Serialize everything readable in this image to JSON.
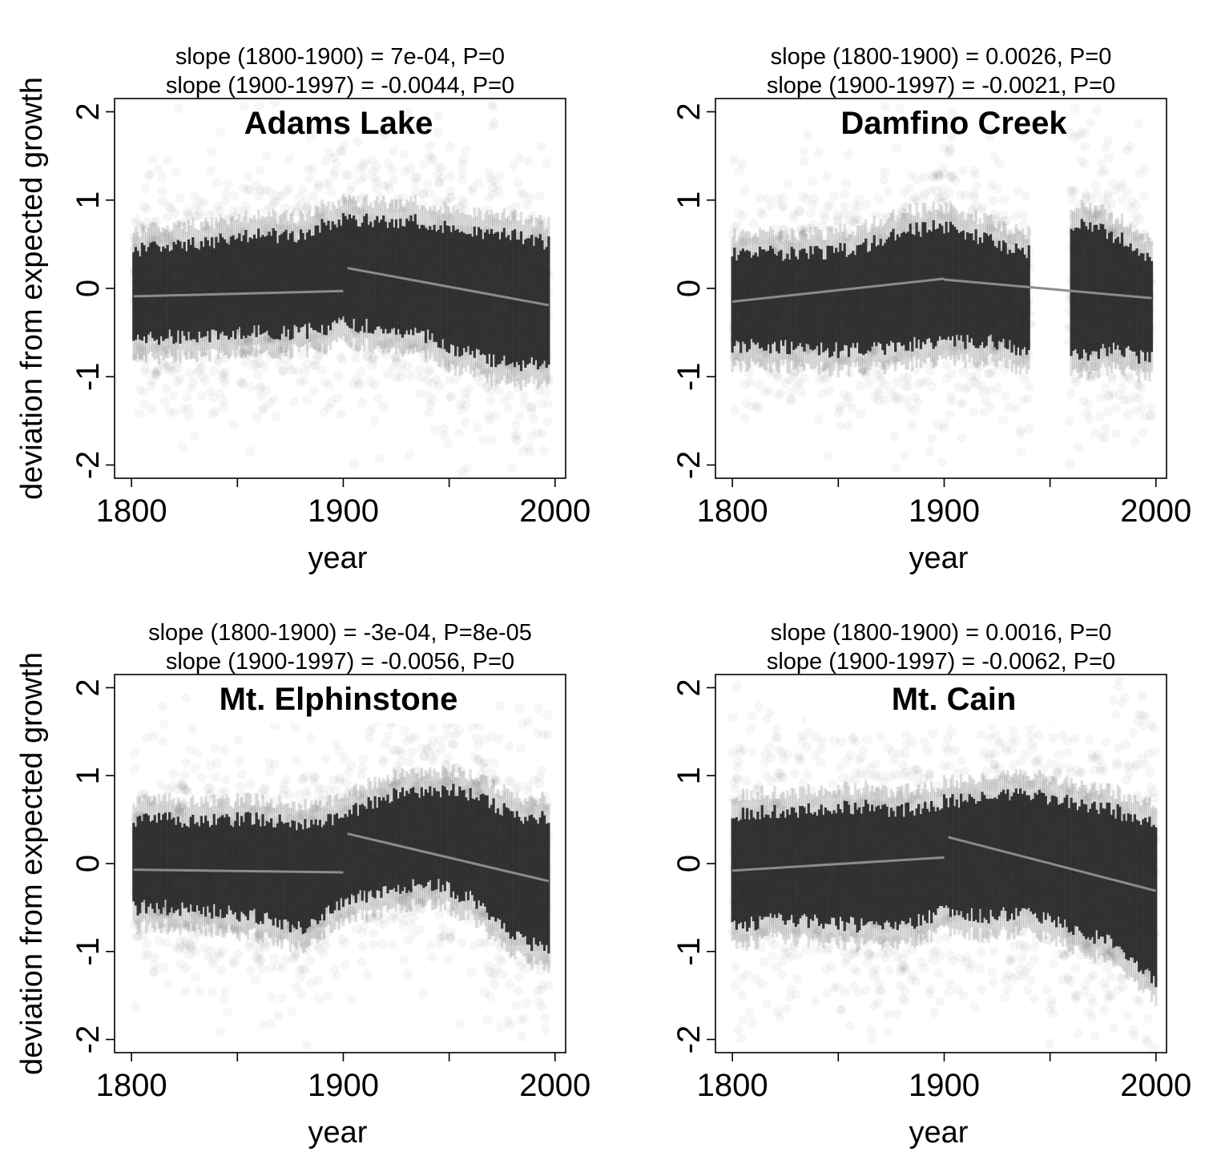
{
  "chart_data": [
    {
      "type": "scatter",
      "title": "Adams Lake",
      "annotations": [
        "slope (1800-1900) = 7e-04, P=0",
        "slope (1900-1997) = -0.0044, P=0"
      ],
      "xlabel": "year",
      "ylabel": "deviation from expected growth",
      "xlim": [
        1792,
        2005
      ],
      "ylim": [
        -2.15,
        2.15
      ],
      "x_ticks": [
        1800,
        1850,
        1900,
        1950,
        2000
      ],
      "x_tick_labels": [
        "1800",
        "",
        "1900",
        "",
        "2000"
      ],
      "y_ticks": [
        -2,
        -1,
        0,
        1,
        2
      ],
      "y_tick_labels": [
        "-2",
        "-1",
        "0",
        "1",
        "2"
      ],
      "data_range": [
        1801,
        1997
      ],
      "band": {
        "x": [
          1801,
          1820,
          1840,
          1860,
          1880,
          1900,
          1920,
          1940,
          1960,
          1980,
          1997
        ],
        "upper": [
          0.45,
          0.45,
          0.55,
          0.6,
          0.6,
          0.8,
          0.75,
          0.75,
          0.65,
          0.6,
          0.5
        ],
        "lower": [
          -0.55,
          -0.55,
          -0.55,
          -0.5,
          -0.5,
          -0.4,
          -0.45,
          -0.55,
          -0.75,
          -0.85,
          -0.85
        ]
      },
      "series": [
        {
          "values": [
            [
              1801,
              -0.09
            ],
            [
              1900,
              -0.03
            ]
          ]
        },
        {
          "values": [
            [
              1902,
              0.23
            ],
            [
              1997,
              -0.19
            ]
          ]
        }
      ],
      "grid": false,
      "colors": {
        "points": "#000000",
        "fit": "#8c8c8c"
      }
    },
    {
      "type": "scatter",
      "title": "Damfino Creek",
      "annotations": [
        "slope (1800-1900) = 0.0026, P=0",
        "slope (1900-1997) = -0.0021, P=0"
      ],
      "xlabel": "year",
      "ylabel": "",
      "xlim": [
        1792,
        2005
      ],
      "ylim": [
        -2.15,
        2.15
      ],
      "x_ticks": [
        1800,
        1850,
        1900,
        1950,
        2000
      ],
      "x_tick_labels": [
        "1800",
        "",
        "1900",
        "",
        "2000"
      ],
      "y_ticks": [
        -2,
        -1,
        0,
        1,
        2
      ],
      "y_tick_labels": [
        "-2",
        "-1",
        "0",
        "1",
        "2"
      ],
      "data_range": [
        1800,
        1998
      ],
      "gaps": [
        [
          1941,
          1959
        ]
      ],
      "band": {
        "x": [
          1800,
          1820,
          1840,
          1860,
          1880,
          1900,
          1920,
          1940,
          1960,
          1980,
          1998
        ],
        "upper": [
          0.4,
          0.4,
          0.4,
          0.45,
          0.65,
          0.7,
          0.55,
          0.4,
          0.75,
          0.6,
          0.35
        ],
        "lower": [
          -0.65,
          -0.65,
          -0.7,
          -0.7,
          -0.65,
          -0.6,
          -0.6,
          -0.7,
          -0.75,
          -0.7,
          -0.8
        ]
      },
      "series": [
        {
          "values": [
            [
              1800,
              -0.15
            ],
            [
              1900,
              0.11
            ]
          ]
        },
        {
          "values": [
            [
              1900,
              0.1
            ],
            [
              1998,
              -0.11
            ]
          ]
        }
      ],
      "grid": false,
      "colors": {
        "points": "#000000",
        "fit": "#8c8c8c"
      }
    },
    {
      "type": "scatter",
      "title": "Mt. Elphinstone",
      "annotations": [
        "slope (1800-1900) = -3e-04, P=8e-05",
        "slope (1900-1997) = -0.0056, P=0"
      ],
      "xlabel": "year",
      "ylabel": "deviation from expected growth",
      "xlim": [
        1792,
        2005
      ],
      "ylim": [
        -2.15,
        2.15
      ],
      "x_ticks": [
        1800,
        1850,
        1900,
        1950,
        2000
      ],
      "x_tick_labels": [
        "1800",
        "",
        "1900",
        "",
        "2000"
      ],
      "y_ticks": [
        -2,
        -1,
        0,
        1,
        2
      ],
      "y_tick_labels": [
        "-2",
        "-1",
        "0",
        "1",
        "2"
      ],
      "data_range": [
        1801,
        1997
      ],
      "band": {
        "x": [
          1801,
          1820,
          1840,
          1860,
          1880,
          1900,
          1920,
          1940,
          1960,
          1980,
          1997
        ],
        "upper": [
          0.5,
          0.5,
          0.5,
          0.5,
          0.45,
          0.55,
          0.75,
          0.85,
          0.8,
          0.55,
          0.5
        ],
        "lower": [
          -0.5,
          -0.5,
          -0.55,
          -0.6,
          -0.75,
          -0.45,
          -0.3,
          -0.2,
          -0.4,
          -0.8,
          -1.0
        ]
      },
      "series": [
        {
          "values": [
            [
              1801,
              -0.07
            ],
            [
              1900,
              -0.1
            ]
          ]
        },
        {
          "values": [
            [
              1902,
              0.34
            ],
            [
              1997,
              -0.2
            ]
          ]
        }
      ],
      "grid": false,
      "colors": {
        "points": "#000000",
        "fit": "#8c8c8c"
      }
    },
    {
      "type": "scatter",
      "title": "Mt. Cain",
      "annotations": [
        "slope (1800-1900) = 0.0016, P=0",
        "slope (1900-1997) = -0.0062, P=0"
      ],
      "xlabel": "year",
      "ylabel": "",
      "xlim": [
        1792,
        2005
      ],
      "ylim": [
        -2.15,
        2.15
      ],
      "x_ticks": [
        1800,
        1850,
        1900,
        1950,
        2000
      ],
      "x_tick_labels": [
        "1800",
        "",
        "1900",
        "",
        "2000"
      ],
      "y_ticks": [
        -2,
        -1,
        0,
        1,
        2
      ],
      "y_tick_labels": [
        "-2",
        "-1",
        "0",
        "1",
        "2"
      ],
      "data_range": [
        1800,
        2000
      ],
      "band": {
        "x": [
          1800,
          1820,
          1840,
          1860,
          1880,
          1900,
          1920,
          1940,
          1960,
          1980,
          2000
        ],
        "upper": [
          0.55,
          0.6,
          0.6,
          0.65,
          0.6,
          0.7,
          0.75,
          0.8,
          0.7,
          0.6,
          0.45
        ],
        "lower": [
          -0.7,
          -0.65,
          -0.65,
          -0.7,
          -0.7,
          -0.55,
          -0.6,
          -0.55,
          -0.75,
          -0.9,
          -1.35
        ]
      },
      "series": [
        {
          "values": [
            [
              1800,
              -0.08
            ],
            [
              1900,
              0.07
            ]
          ]
        },
        {
          "values": [
            [
              1902,
              0.3
            ],
            [
              2000,
              -0.31
            ]
          ]
        }
      ],
      "grid": false,
      "colors": {
        "points": "#000000",
        "fit": "#8c8c8c"
      }
    }
  ]
}
